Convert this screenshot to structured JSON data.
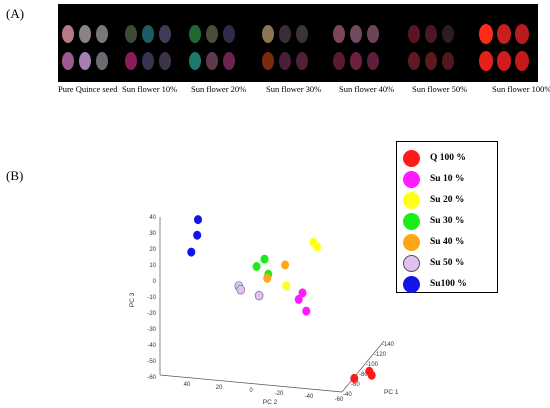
{
  "panels": {
    "a_label": "(A)",
    "b_label": "(B)"
  },
  "captions": [
    "Pure Quince seed",
    "Sun flower 10%",
    "Sun flower 20%",
    "Sun flower 30%",
    "Sun flower 40%",
    "Sun flower 50%",
    "Sun flower 100%"
  ],
  "legend": [
    {
      "label": "Q 100 %",
      "color": "#ff1a1a"
    },
    {
      "label": "Su 10 %",
      "color": "#ff1aff"
    },
    {
      "label": "Su 20 %",
      "color": "#ffff1a"
    },
    {
      "label": "Su 30 %",
      "color": "#1aee1a"
    },
    {
      "label": "Su 40 %",
      "color": "#ffa51a"
    },
    {
      "label": "Su 50 %",
      "color": "#e0c2f0"
    },
    {
      "label": "Su100 %",
      "color": "#1414e6"
    }
  ],
  "chart_data": {
    "type": "scatter",
    "title": "",
    "axes": {
      "x": "PC 1",
      "y": "PC 2",
      "z": "PC 3"
    },
    "ticks": {
      "pc3": [
        "40",
        "30",
        "20",
        "10",
        "0",
        "-10",
        "-20",
        "-30",
        "-40",
        "-50",
        "-60"
      ],
      "pc2": [
        "40",
        "20",
        "0",
        "-20",
        "-40",
        "-60"
      ],
      "pc1": [
        "-140",
        "-120",
        "-100",
        "-80",
        "-60",
        "-40"
      ]
    },
    "series": [
      {
        "name": "Q 100 %",
        "color": "#ff1a1a",
        "points": [
          {
            "pc1": -120,
            "pc2": -55,
            "pc3": -30
          },
          {
            "pc1": -122,
            "pc2": -56,
            "pc3": -32
          },
          {
            "pc1": -110,
            "pc2": -48,
            "pc3": -38
          }
        ]
      },
      {
        "name": "Su 10 %",
        "color": "#ff1aff",
        "points": [
          {
            "pc1": -60,
            "pc2": -30,
            "pc3": 3
          },
          {
            "pc1": -58,
            "pc2": -28,
            "pc3": -2
          },
          {
            "pc1": -62,
            "pc2": -32,
            "pc3": -8
          }
        ]
      },
      {
        "name": "Su 20 %",
        "color": "#ffff1a",
        "points": [
          {
            "pc1": -55,
            "pc2": -40,
            "pc3": 36
          },
          {
            "pc1": -57,
            "pc2": -42,
            "pc3": 34
          },
          {
            "pc1": -50,
            "pc2": -22,
            "pc3": 4
          }
        ]
      },
      {
        "name": "Su 30 %",
        "color": "#1aee1a",
        "points": [
          {
            "pc1": -40,
            "pc2": -10,
            "pc3": 17
          },
          {
            "pc1": -38,
            "pc2": -5,
            "pc3": 11
          },
          {
            "pc1": -42,
            "pc2": -12,
            "pc3": 8
          }
        ]
      },
      {
        "name": "Su 40 %",
        "color": "#ffa51a",
        "points": [
          {
            "pc1": -48,
            "pc2": -22,
            "pc3": 17
          },
          {
            "pc1": -40,
            "pc2": -12,
            "pc3": 5
          }
        ]
      },
      {
        "name": "Su 50 %",
        "color": "#e0c2f0",
        "points": [
          {
            "pc1": -30,
            "pc2": 5,
            "pc3": -5
          },
          {
            "pc1": -31,
            "pc2": 4,
            "pc3": -7
          },
          {
            "pc1": -35,
            "pc2": -8,
            "pc3": -8
          }
        ]
      },
      {
        "name": "Su100 %",
        "color": "#1414e6",
        "points": [
          {
            "pc1": -5,
            "pc2": 25,
            "pc3": 29
          },
          {
            "pc1": -6,
            "pc2": 26,
            "pc3": 19
          },
          {
            "pc1": -10,
            "pc2": 32,
            "pc3": 8
          }
        ]
      }
    ]
  }
}
